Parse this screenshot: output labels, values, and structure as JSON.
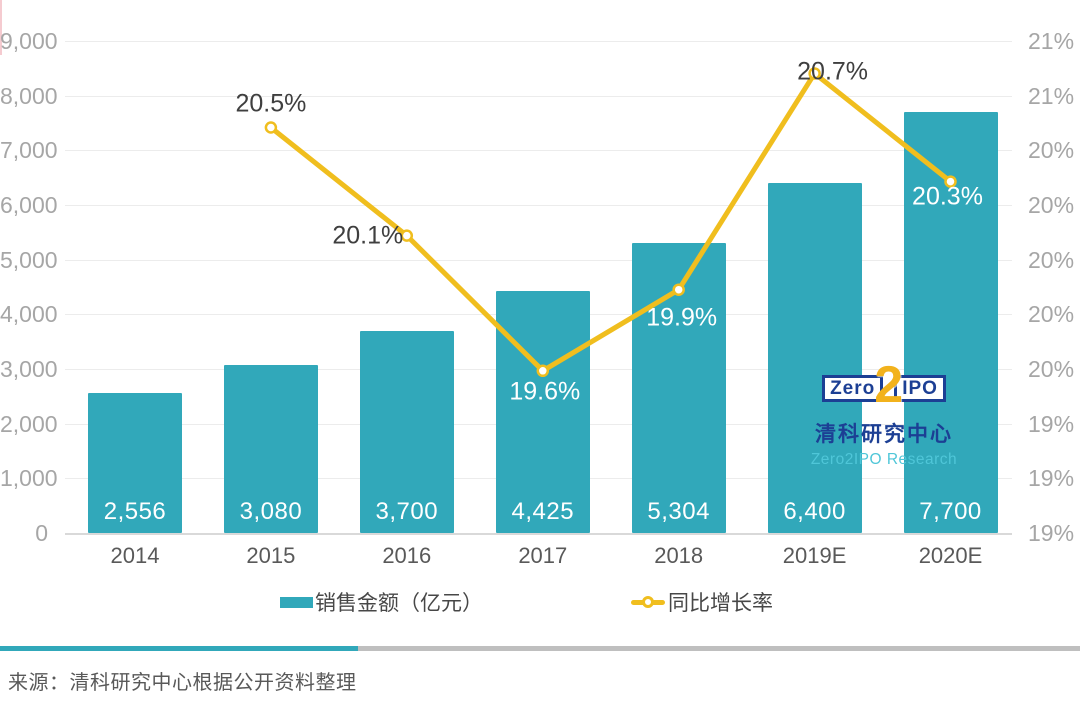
{
  "legend": {
    "bar_label": "销售金额（亿元）",
    "line_label": "同比增长率"
  },
  "source_note": "来源：清科研究中心根据公开资料整理",
  "brand": {
    "zero": "Zero",
    "two": "2",
    "ipo": "IPO",
    "name_cn": "清科研究中心",
    "name_en": "Zero2IPO Research",
    "navy": "#1C3F94",
    "gold": "#F2B21C",
    "teal": "#4FC6D8"
  },
  "colors": {
    "bar": "#31A8BA",
    "line": "#F0BE1E",
    "grid": "#ECECEC",
    "axis_line": "#D9D9D9",
    "axis_text": "#A6A6A6",
    "x_text": "#595959",
    "label_dark": "#3F3F3F",
    "label_light": "#FFFFFF",
    "divider_teal": "#31A8BA",
    "divider_gray": "#BFBFBF"
  },
  "chart_data": {
    "type": "bar+line",
    "categories": [
      "2014",
      "2015",
      "2016",
      "2017",
      "2018",
      "2019E",
      "2020E"
    ],
    "series": [
      {
        "name": "销售金额（亿元）",
        "type": "bar",
        "values": [
          2556,
          3080,
          3700,
          4425,
          5304,
          6400,
          7700
        ],
        "labels": [
          "2,556",
          "3,080",
          "3,700",
          "4,425",
          "5,304",
          "6,400",
          "7,700"
        ],
        "color": "#31A8BA"
      },
      {
        "name": "同比增长率",
        "type": "line",
        "values": [
          null,
          20.5,
          20.1,
          19.6,
          19.9,
          20.7,
          20.3
        ],
        "labels": [
          null,
          "20.5%",
          "20.1%",
          "19.6%",
          "19.9%",
          "20.7%",
          "20.3%"
        ],
        "color": "#F0BE1E"
      }
    ],
    "left_axis": {
      "min": 0,
      "max": 9000,
      "tick_labels": [
        "9,000",
        "8,000",
        "7,000",
        "6,000",
        "5,000",
        "4,000",
        "3,000",
        "2,000",
        "1,000",
        "0"
      ]
    },
    "right_axis": {
      "min": 19.0,
      "max": 20.82,
      "tick_labels": [
        "21%",
        "21%",
        "20%",
        "20%",
        "20%",
        "20%",
        "20%",
        "19%",
        "19%",
        "19%"
      ]
    },
    "grid": true,
    "legend_position": "bottom",
    "title": ""
  }
}
